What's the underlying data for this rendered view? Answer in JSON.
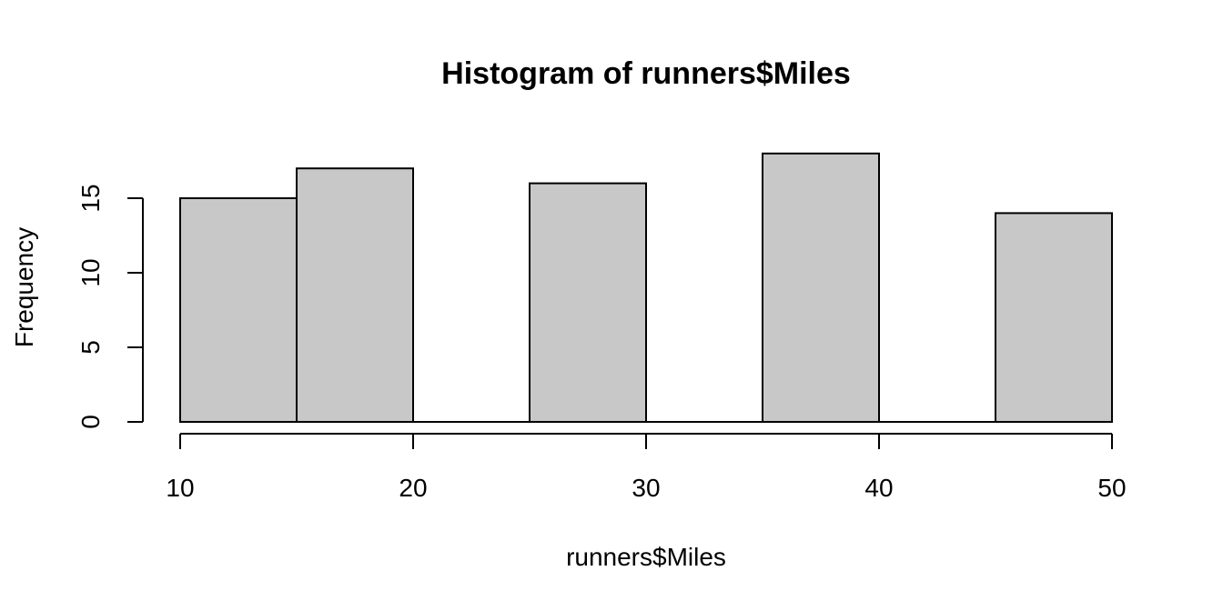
{
  "chart_data": {
    "type": "bar",
    "title": "Histogram of runners$Miles",
    "xlabel": "runners$Miles",
    "ylabel": "Frequency",
    "bins": [
      {
        "from": 10,
        "to": 15,
        "count": 15
      },
      {
        "from": 15,
        "to": 20,
        "count": 17
      },
      {
        "from": 20,
        "to": 25,
        "count": 0
      },
      {
        "from": 25,
        "to": 30,
        "count": 16
      },
      {
        "from": 30,
        "to": 35,
        "count": 0
      },
      {
        "from": 35,
        "to": 40,
        "count": 18
      },
      {
        "from": 40,
        "to": 45,
        "count": 0
      },
      {
        "from": 45,
        "to": 50,
        "count": 14
      }
    ],
    "xlim": [
      10,
      50
    ],
    "ylim": [
      0,
      18
    ],
    "x_ticks": [
      "10",
      "20",
      "30",
      "40",
      "50"
    ],
    "y_ticks": [
      "0",
      "5",
      "10",
      "15"
    ],
    "bar_color": "#c8c8c8",
    "grid": false
  }
}
